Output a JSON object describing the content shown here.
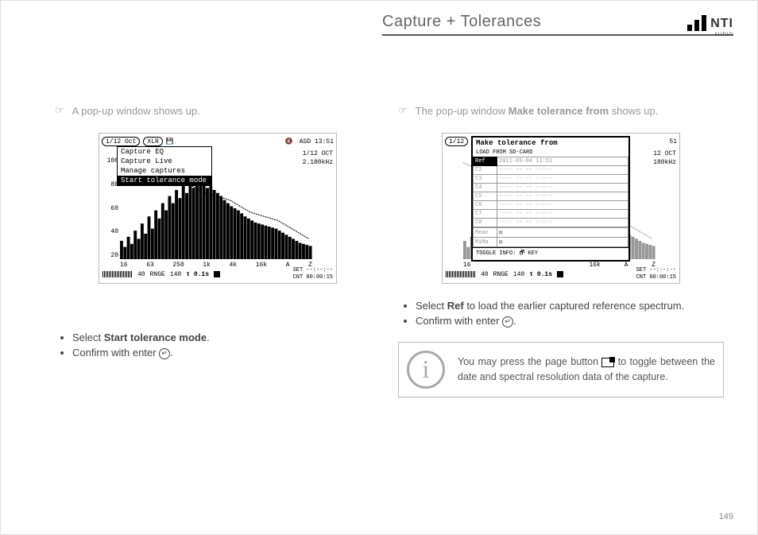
{
  "header": {
    "title": "Capture + Tolerances",
    "logo_text": "NTI",
    "logo_sub": "AUDIO"
  },
  "pagenum": "149",
  "left": {
    "lead": "A pop-up window shows up.",
    "device": {
      "top_oct": "1/12 Oct",
      "top_xlr": "XLR",
      "top_asd": "ASD 13:51",
      "sect_l1": "1/12 OCT",
      "sect_l2": "2.180kHz",
      "yticks": [
        "100",
        "80",
        "60",
        "40",
        "20"
      ],
      "xticks": [
        "16",
        "63",
        "250",
        "1k",
        "4k",
        "16k",
        "A",
        "Z"
      ],
      "popup_items": [
        "Capture EQ",
        "Capture Live",
        "Manage captures",
        "Start tolerance mode"
      ],
      "popup_sel_idx": 3,
      "rnge_lo": "40",
      "rnge": "RNGE",
      "rnge_hi": "140",
      "tau": "τ 0.1s",
      "set": "SET --:--:--",
      "cnt": "CNT 00:00:15",
      "bars": [
        18,
        12,
        22,
        15,
        28,
        20,
        35,
        25,
        42,
        30,
        48,
        40,
        55,
        48,
        62,
        55,
        68,
        60,
        72,
        65,
        75,
        70,
        78,
        72,
        75,
        70,
        72,
        68,
        65,
        62,
        58,
        55,
        52,
        50,
        48,
        45,
        42,
        40,
        38,
        36,
        35,
        34,
        33,
        32,
        31,
        30,
        28,
        26,
        24,
        22,
        20,
        18,
        16,
        15,
        14,
        13
      ],
      "line": [
        95,
        93,
        92,
        91,
        90,
        89,
        91,
        90,
        88,
        87,
        86,
        85,
        84,
        83,
        82,
        80,
        78,
        76,
        75,
        74,
        73,
        72,
        70,
        68,
        66,
        65,
        64,
        63,
        62,
        61,
        60,
        59,
        58,
        56,
        54,
        52,
        50,
        48,
        46,
        45,
        44,
        43,
        42,
        41,
        40,
        39,
        38,
        36,
        34,
        32,
        30,
        28,
        26,
        24,
        22,
        20
      ]
    },
    "bullets": [
      {
        "pre": "Select ",
        "bold": "Start tolerance mode",
        "post": "."
      },
      {
        "pre": "Confirm with enter ",
        "enter": true,
        "post": "."
      }
    ]
  },
  "right": {
    "lead_pre": "The pop-up window ",
    "lead_bold": "Make tolerance from",
    "lead_post": " shows up.",
    "device": {
      "top_oct": "1/12",
      "top_right": "51",
      "sect_l1": "12 OCT",
      "sect_l2": "180kHz",
      "popup_title": "Make tolerance from",
      "popup_sub": "LOAD FROM SD-CARD",
      "rows": [
        {
          "c": "Ref",
          "d": "2011-05-04 13:51",
          "sel": true
        },
        {
          "c": "C2",
          "d": "---- -- -- --:--"
        },
        {
          "c": "C3",
          "d": "---- -- -- --:--"
        },
        {
          "c": "C4",
          "d": "---- -- -- --:--"
        },
        {
          "c": "C5",
          "d": "---- -- -- --:--"
        },
        {
          "c": "C6",
          "d": "---- -- -- --:--"
        },
        {
          "c": "C7",
          "d": "---- -- -- --:--"
        },
        {
          "c": "C8",
          "d": "---- -- -- --:--"
        }
      ],
      "mean": "Mean",
      "mima": "MiMa",
      "toggle": "TOGGLE INFO: 🗗 KEY",
      "xticks": [
        "16",
        "",
        "",
        "",
        "",
        "16k",
        "A",
        "Z"
      ],
      "rnge_lo": "40",
      "rnge": "RNGE",
      "rnge_hi": "140",
      "tau": "τ 0.1s",
      "set": "SET --:--:--",
      "cnt": "CNT 00:00:15"
    },
    "bullets": [
      {
        "pre": "Select ",
        "bold": "Ref",
        "post": " to load the earlier captured reference spectrum."
      },
      {
        "pre": "Confirm with enter ",
        "enter": true,
        "post": "."
      }
    ],
    "info": "You may press the page button ⎘ to toggle between the date and spectral resolution data of the capture.",
    "info_pre": "You may press the page button ",
    "info_post": " to toggle between the date and spectral resolution data of the capture."
  }
}
